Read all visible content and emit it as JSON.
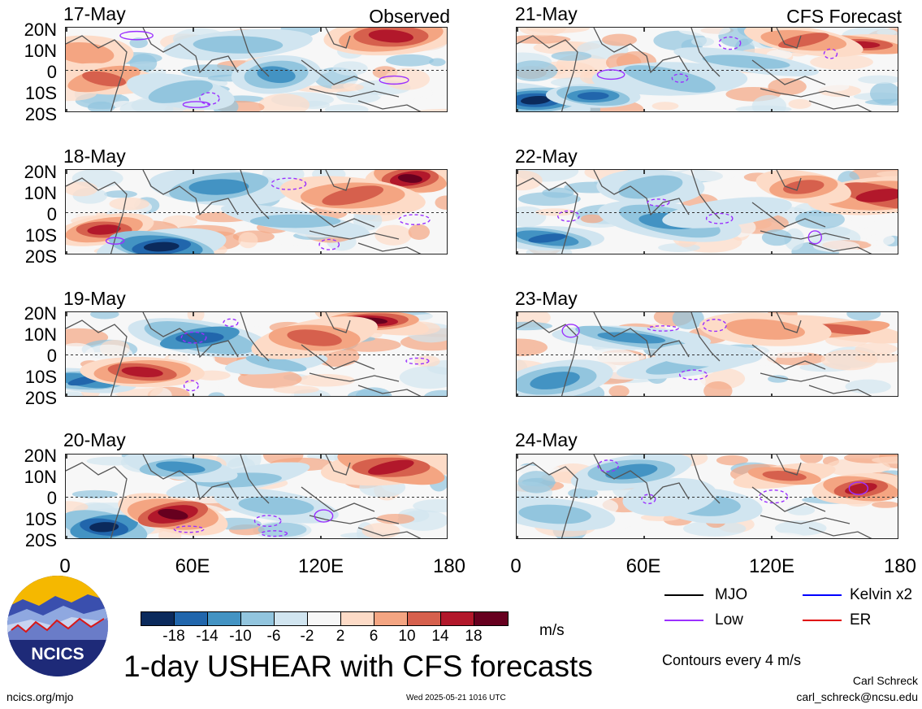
{
  "observed_label": "Observed",
  "forecast_label": "CFS Forecast",
  "lat_labels": [
    "20N",
    "10N",
    "0",
    "10S",
    "20S"
  ],
  "lon_labels": [
    "0",
    "60E",
    "120E",
    "180"
  ],
  "observed_dates": [
    "17-May",
    "18-May",
    "19-May",
    "20-May"
  ],
  "forecast_dates": [
    "21-May",
    "22-May",
    "23-May",
    "24-May"
  ],
  "colorbar": {
    "colors": [
      "#0b2a5c",
      "#2166ac",
      "#4393c3",
      "#92c5de",
      "#d1e5f0",
      "#f7f7f7",
      "#fddbc7",
      "#f4a582",
      "#d6604d",
      "#b2182b",
      "#67001f"
    ],
    "labels": [
      "-18",
      "-14",
      "-10",
      "-6",
      "-2",
      "2",
      "6",
      "10",
      "14",
      "18"
    ],
    "unit": "m/s"
  },
  "legend": {
    "items": [
      {
        "label": "MJO",
        "color": "#000000"
      },
      {
        "label": "Kelvin x2",
        "color": "#0000ff"
      },
      {
        "label": "Low",
        "color": "#9b30ff"
      },
      {
        "label": "ER",
        "color": "#e00000"
      }
    ],
    "contour_note": "Contours every 4 m/s"
  },
  "title": "1-day USHEAR with CFS forecasts",
  "logo_text": "NCICS",
  "footer": {
    "url": "ncics.org/mjo",
    "timestamp": "Wed 2025-05-21 1016 UTC",
    "author": "Carl Schreck",
    "email": "carl_schreck@ncsu.edu"
  }
}
